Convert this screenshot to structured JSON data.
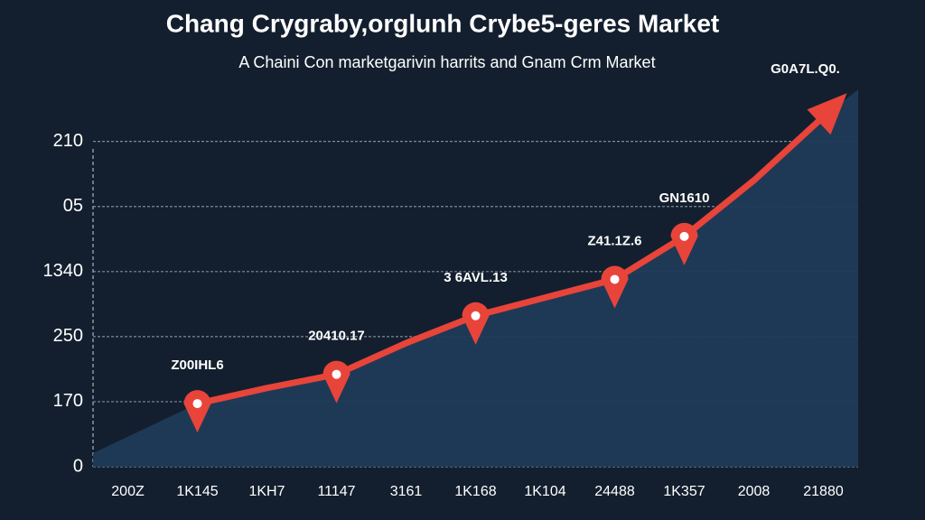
{
  "chart_data": {
    "type": "line",
    "title": "Chang Crygraby,orglunh Crybe5-geres Market",
    "subtitle": "A Chaini Con marketgarivin harrits and Gnam Crm Market",
    "categories": [
      "200Z",
      "1K145",
      "1KH7",
      "11147",
      "3161",
      "1K168",
      "1K104",
      "24488",
      "1K357",
      "2008",
      "21880"
    ],
    "series": [
      {
        "name": "line",
        "color": "#e8443a",
        "area_color": "#1f3b58",
        "values": [
          null,
          0.97,
          1.21,
          1.42,
          1.9,
          2.32,
          2.6,
          2.88,
          3.54,
          4.4,
          5.38
        ]
      },
      {
        "name": "points",
        "color": "#e8443a",
        "values": [
          null,
          0.97,
          null,
          1.42,
          null,
          2.32,
          null,
          2.88,
          3.54,
          null,
          null
        ]
      }
    ],
    "annotations": [
      "Z00IHL6",
      "20410.17",
      "3 6AVL.13",
      "Z41.1Z.6",
      "GN1610",
      "G0A7L.Q0."
    ],
    "ylim": [
      0,
      5.8
    ],
    "yticks": [
      0,
      {
        "value": 1,
        "label": "170"
      },
      {
        "value": 2,
        "label": "250"
      },
      {
        "value": 3,
        "label": "1340"
      },
      {
        "value": 4,
        "label": "05"
      },
      {
        "value": 5,
        "label": "210"
      }
    ],
    "grid": true
  }
}
